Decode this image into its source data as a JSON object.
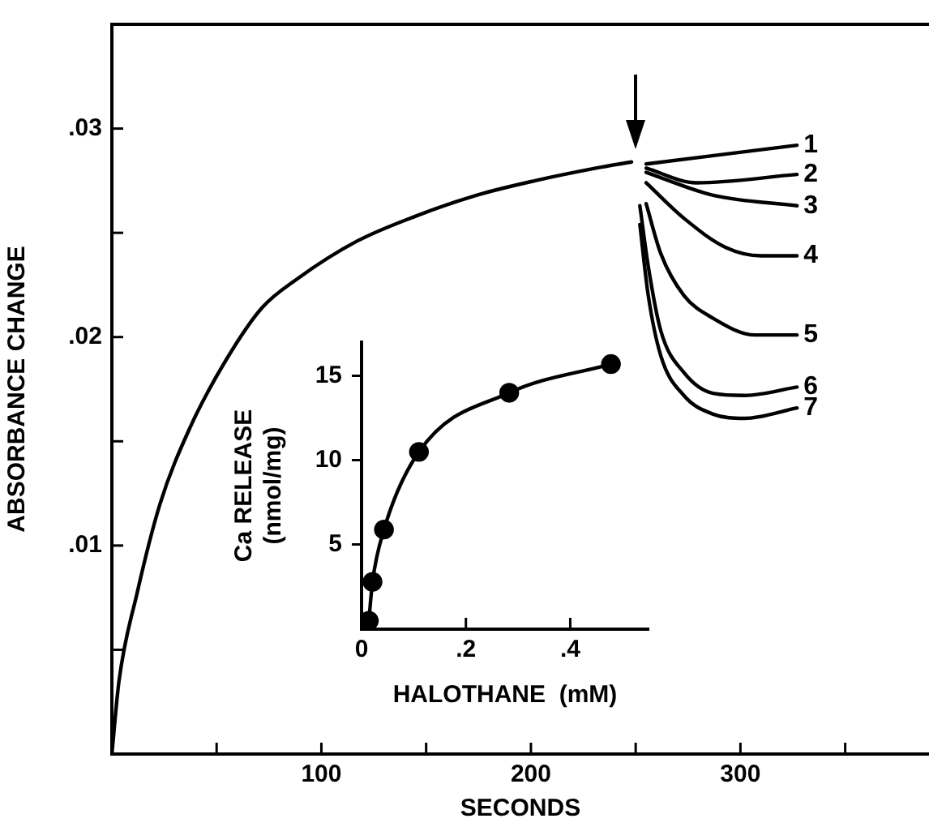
{
  "chart_data": [
    {
      "type": "line",
      "xlabel": "SECONDS",
      "ylabel": "ABSORBANCE CHANGE",
      "xlim": [
        0,
        390
      ],
      "ylim": [
        0,
        0.035
      ],
      "xticks": [
        {
          "value": 50,
          "label": null
        },
        100,
        {
          "value": 150,
          "label": null
        },
        200,
        {
          "value": 250,
          "label": null
        },
        300,
        {
          "value": 350,
          "label": null
        }
      ],
      "yticks": [
        {
          "value": 0.005,
          "label": null
        },
        {
          "value": 0.01,
          "label": ".01"
        },
        {
          "value": 0.015,
          "label": null
        },
        {
          "value": 0.02,
          "label": ".02"
        },
        {
          "value": 0.025,
          "label": null
        },
        {
          "value": 0.03,
          "label": ".03"
        }
      ],
      "grid": false,
      "legend": false,
      "marker": "none",
      "line_style": "solid",
      "series": [
        {
          "color": "#000000",
          "x": [
            0,
            3.4,
            12,
            23,
            37.5,
            54.5,
            71.6,
            88.6,
            117,
            145,
            174,
            202,
            231,
            248
          ],
          "values": [
            0,
            0.0035,
            0.0077,
            0.012,
            0.0157,
            0.0189,
            0.0214,
            0.0228,
            0.0246,
            0.0258,
            0.0268,
            0.0275,
            0.0281,
            0.0284
          ]
        },
        {
          "name": "1",
          "color": "#000000",
          "x": [
            255,
            327
          ],
          "values": [
            0.0283,
            0.0292
          ]
        },
        {
          "name": "2",
          "color": "#000000",
          "x": [
            255,
            279,
            327
          ],
          "values": [
            0.0281,
            0.0274,
            0.0278
          ]
        },
        {
          "name": "3",
          "color": "#000000",
          "x": [
            255,
            287,
            327
          ],
          "values": [
            0.0279,
            0.0268,
            0.0263
          ]
        },
        {
          "name": "4",
          "color": "#000000",
          "x": [
            255,
            273,
            293,
            310,
            327
          ],
          "values": [
            0.0274,
            0.0257,
            0.0243,
            0.0239,
            0.0239
          ]
        },
        {
          "name": "5",
          "color": "#000000",
          "x": [
            255,
            262,
            273,
            287,
            307,
            327
          ],
          "values": [
            0.0264,
            0.024,
            0.022,
            0.0209,
            0.0201,
            0.0201
          ]
        },
        {
          "name": "6",
          "color": "#000000",
          "x": [
            252,
            256,
            262,
            273,
            287,
            302,
            327
          ],
          "values": [
            0.0263,
            0.0234,
            0.0203,
            0.0183,
            0.0173,
            0.0172,
            0.0176
          ]
        },
        {
          "name": "7",
          "color": "#000000",
          "x": [
            252,
            256,
            262,
            273,
            287,
            302,
            327
          ],
          "values": [
            0.0254,
            0.022,
            0.0191,
            0.0172,
            0.0163,
            0.0161,
            0.0166
          ]
        }
      ]
    },
    {
      "type": "line",
      "xlabel": "HALOTHANE  (mM)",
      "ylabel": "Ca RELEASE\n(nmol/mg)",
      "xlim": [
        0,
        0.55
      ],
      "ylim": [
        0,
        17
      ],
      "xticks": [
        0,
        {
          "value": 0.2,
          "label": ".2"
        },
        {
          "value": 0.4,
          "label": ".4"
        }
      ],
      "yticks": [
        5,
        10,
        15
      ],
      "grid": false,
      "legend": false,
      "marker": "circle",
      "series": [
        {
          "color": "#000000",
          "x": [
            0.014,
            0.021,
            0.043,
            0.11,
            0.283,
            0.478
          ],
          "values": [
            0.5,
            2.8,
            5.9,
            10.5,
            14.0,
            15.7
          ]
        }
      ]
    }
  ]
}
